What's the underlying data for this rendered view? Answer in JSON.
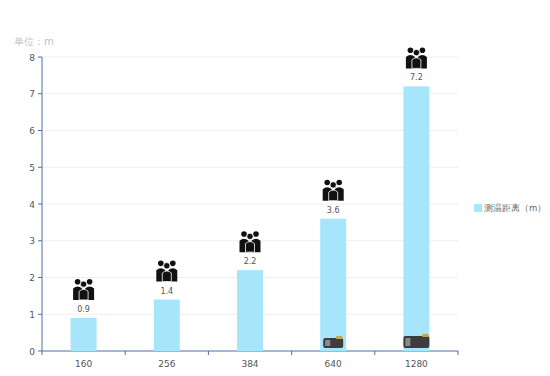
{
  "chart_data": {
    "type": "bar",
    "ylabel": "单位：m",
    "categories": [
      "160",
      "256",
      "384",
      "640",
      "1280"
    ],
    "series": [
      {
        "name": "测温距离（m）",
        "color": "#a6e6fb",
        "values": [
          0.9,
          1.4,
          2.2,
          3.6,
          7.2
        ]
      }
    ],
    "ylim": [
      0,
      8
    ],
    "yticks": [
      0,
      1,
      2,
      3,
      4,
      5,
      6,
      7,
      8
    ],
    "grid": true,
    "legend": "right",
    "data_labels": true
  }
}
